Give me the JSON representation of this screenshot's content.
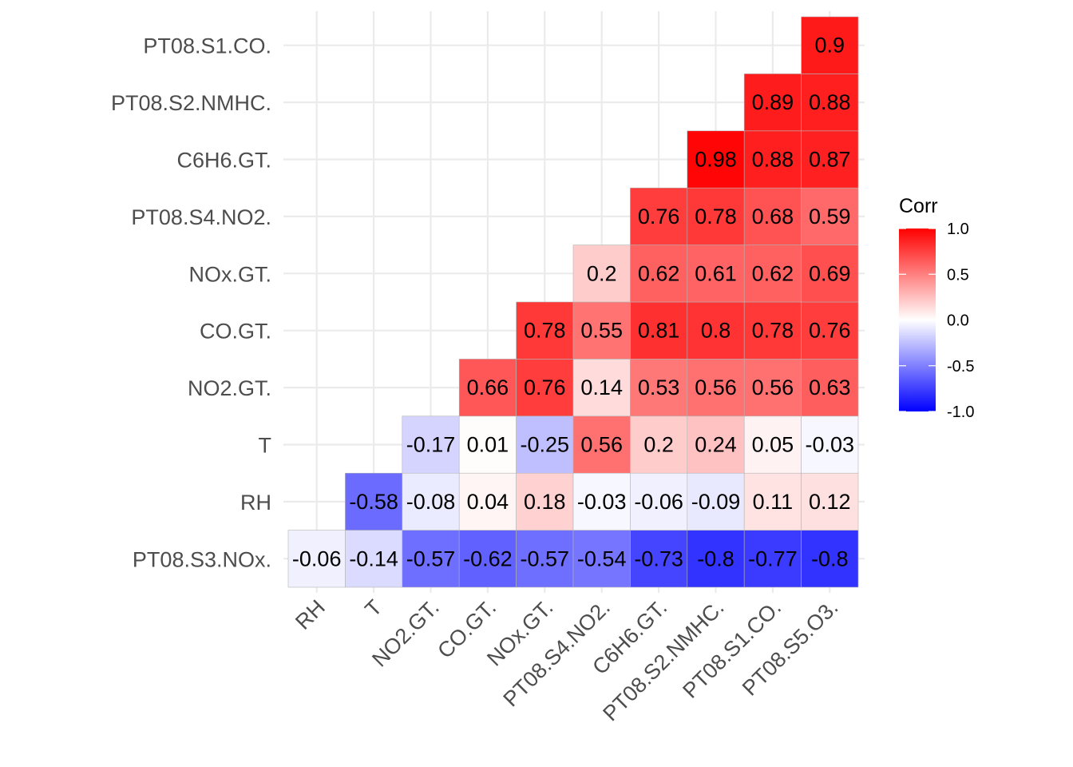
{
  "chart_data": {
    "type": "heatmap",
    "x_categories": [
      "RH",
      "T",
      "NO2.GT.",
      "CO.GT.",
      "NOx.GT.",
      "PT08.S4.NO2.",
      "C6H6.GT.",
      "PT08.S2.NMHC.",
      "PT08.S1.CO.",
      "PT08.S5.O3."
    ],
    "y_categories": [
      "PT08.S3.NOx.",
      "RH",
      "T",
      "NO2.GT.",
      "CO.GT.",
      "NOx.GT.",
      "PT08.S4.NO2.",
      "C6H6.GT.",
      "PT08.S2.NMHC.",
      "PT08.S1.CO."
    ],
    "values": [
      [
        -0.06,
        -0.14,
        -0.57,
        -0.62,
        -0.57,
        -0.54,
        -0.73,
        -0.8,
        -0.77,
        -0.8
      ],
      [
        null,
        -0.58,
        -0.08,
        0.04,
        0.18,
        -0.03,
        -0.06,
        -0.09,
        0.11,
        0.12
      ],
      [
        null,
        null,
        -0.17,
        0.01,
        -0.25,
        0.56,
        0.2,
        0.24,
        0.05,
        -0.03
      ],
      [
        null,
        null,
        null,
        0.66,
        0.76,
        0.14,
        0.53,
        0.56,
        0.56,
        0.63
      ],
      [
        null,
        null,
        null,
        null,
        0.78,
        0.55,
        0.81,
        0.8,
        0.78,
        0.76
      ],
      [
        null,
        null,
        null,
        null,
        null,
        0.2,
        0.62,
        0.61,
        0.62,
        0.69
      ],
      [
        null,
        null,
        null,
        null,
        null,
        null,
        0.76,
        0.78,
        0.68,
        0.59
      ],
      [
        null,
        null,
        null,
        null,
        null,
        null,
        null,
        0.98,
        0.88,
        0.87
      ],
      [
        null,
        null,
        null,
        null,
        null,
        null,
        null,
        null,
        0.89,
        0.88
      ],
      [
        null,
        null,
        null,
        null,
        null,
        null,
        null,
        null,
        null,
        0.9
      ]
    ],
    "value_range": [
      -1,
      1
    ],
    "colors": {
      "low": "#0000ff",
      "mid": "#ffffff",
      "high": "#ff0000"
    },
    "legend": {
      "title": "Corr",
      "ticks": [
        1.0,
        0.5,
        0.0,
        -0.5,
        -1.0
      ],
      "tick_labels": [
        "1.0",
        "0.5",
        "0.0",
        "-0.5",
        "-1.0"
      ],
      "placement": "right"
    },
    "grid": true,
    "cell_border": "#b3b3b3",
    "title": "",
    "xlabel": "",
    "ylabel": ""
  }
}
